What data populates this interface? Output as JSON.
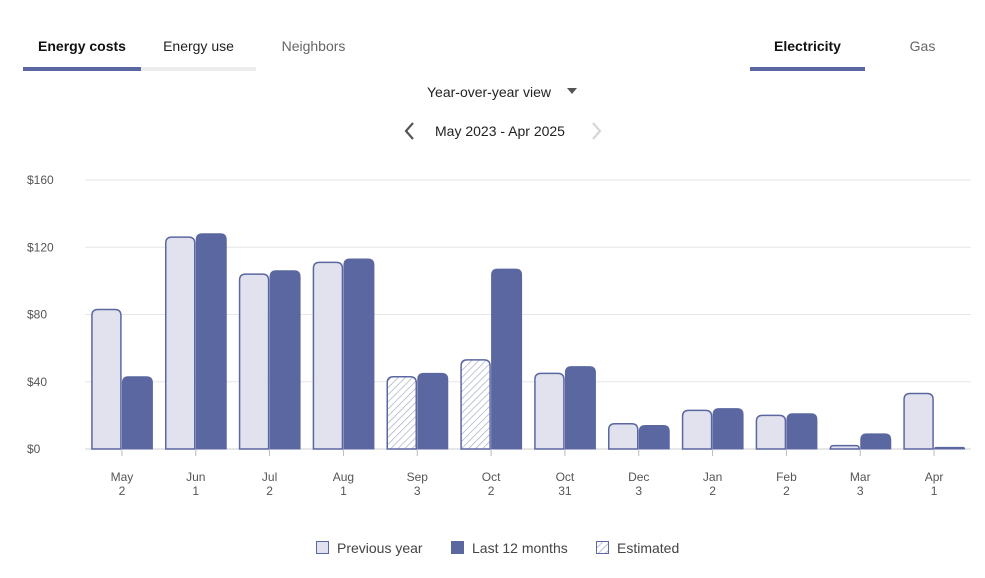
{
  "tabs_left": [
    {
      "label": "Energy costs",
      "active": true
    },
    {
      "label": "Energy use",
      "active": false
    },
    {
      "label": "Neighbors",
      "active": false
    }
  ],
  "tabs_right": [
    {
      "label": "Electricity",
      "active": true
    },
    {
      "label": "Gas",
      "active": false
    }
  ],
  "view_selector": {
    "label": "Year-over-year view"
  },
  "date_nav": {
    "range": "May 2023 - Apr 2025",
    "prev_enabled": true,
    "next_enabled": false
  },
  "colors": {
    "previous": "#e1e2ee",
    "previous_border": "#5b67a0",
    "current": "#5b67a0",
    "accent": "#5b67a0",
    "grid": "#e6e6e6"
  },
  "legend": {
    "previous": "Previous year",
    "current": "Last 12 months",
    "estimated": "Estimated"
  },
  "chart_data": {
    "type": "bar",
    "title": "",
    "xlabel": "",
    "ylabel": "",
    "ylim": [
      0,
      160
    ],
    "yticks": [
      0,
      40,
      80,
      120,
      160
    ],
    "ytick_labels": [
      "$0",
      "$40",
      "$80",
      "$120",
      "$160"
    ],
    "grid": true,
    "categories": [
      "May",
      "Jun",
      "Jul",
      "Aug",
      "Sep",
      "Oct",
      "Oct",
      "Dec",
      "Jan",
      "Feb",
      "Mar",
      "Apr"
    ],
    "category_sublabels": [
      "2",
      "1",
      "2",
      "1",
      "3",
      "2",
      "31",
      "3",
      "2",
      "2",
      "3",
      "1"
    ],
    "series": [
      {
        "name": "Previous year",
        "values": [
          83,
          126,
          104,
          111,
          43,
          53,
          45,
          15,
          23,
          20,
          2,
          33
        ],
        "estimated": [
          false,
          false,
          false,
          false,
          true,
          true,
          false,
          false,
          false,
          false,
          false,
          false
        ]
      },
      {
        "name": "Last 12 months",
        "values": [
          43,
          128,
          106,
          113,
          45,
          107,
          49,
          14,
          24,
          21,
          9,
          1
        ],
        "estimated": [
          false,
          false,
          false,
          false,
          false,
          false,
          false,
          false,
          false,
          false,
          false,
          false
        ]
      }
    ]
  }
}
